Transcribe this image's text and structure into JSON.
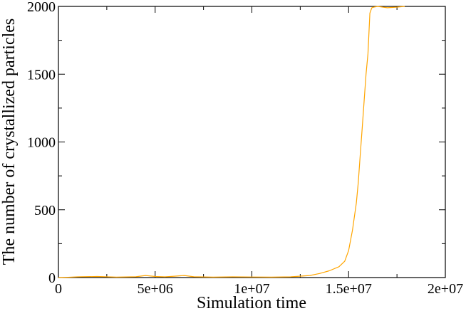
{
  "chart_data": {
    "type": "line",
    "title": "",
    "xlabel": "Simulation time",
    "ylabel": "The number of crystallized particles",
    "xlim": [
      0,
      20000000
    ],
    "ylim": [
      0,
      2000
    ],
    "x_ticks": [
      0,
      5000000,
      10000000,
      15000000,
      20000000
    ],
    "x_tick_labels": [
      "0",
      "5e+06",
      "1e+07",
      "1.5e+07",
      "2e+07"
    ],
    "y_ticks": [
      0,
      500,
      1000,
      1500,
      2000
    ],
    "y_tick_labels": [
      "0",
      "500",
      "1000",
      "1500",
      "2000"
    ],
    "grid": false,
    "legend": "none",
    "line_color": "#FFA500",
    "series": [
      {
        "x": [
          0,
          500000,
          1000000,
          2000000,
          3000000,
          4000000,
          4500000,
          5000000,
          5500000,
          6000000,
          6500000,
          7000000,
          8000000,
          9000000,
          10000000,
          11000000,
          12000000,
          13000000,
          13500000,
          14000000,
          14500000,
          14800000,
          15000000,
          15200000,
          15400000,
          15500000,
          15600000,
          15700000,
          15800000,
          15900000,
          16000000,
          16100000,
          16200000,
          16300000,
          16500000,
          17000000,
          17500000,
          17900000
        ],
        "y": [
          0,
          2,
          5,
          8,
          3,
          6,
          15,
          8,
          5,
          10,
          15,
          6,
          3,
          5,
          4,
          3,
          5,
          15,
          30,
          50,
          80,
          120,
          200,
          350,
          550,
          700,
          900,
          1100,
          1300,
          1500,
          1650,
          1950,
          1990,
          1995,
          2000,
          1990,
          1995,
          2000
        ]
      }
    ]
  }
}
